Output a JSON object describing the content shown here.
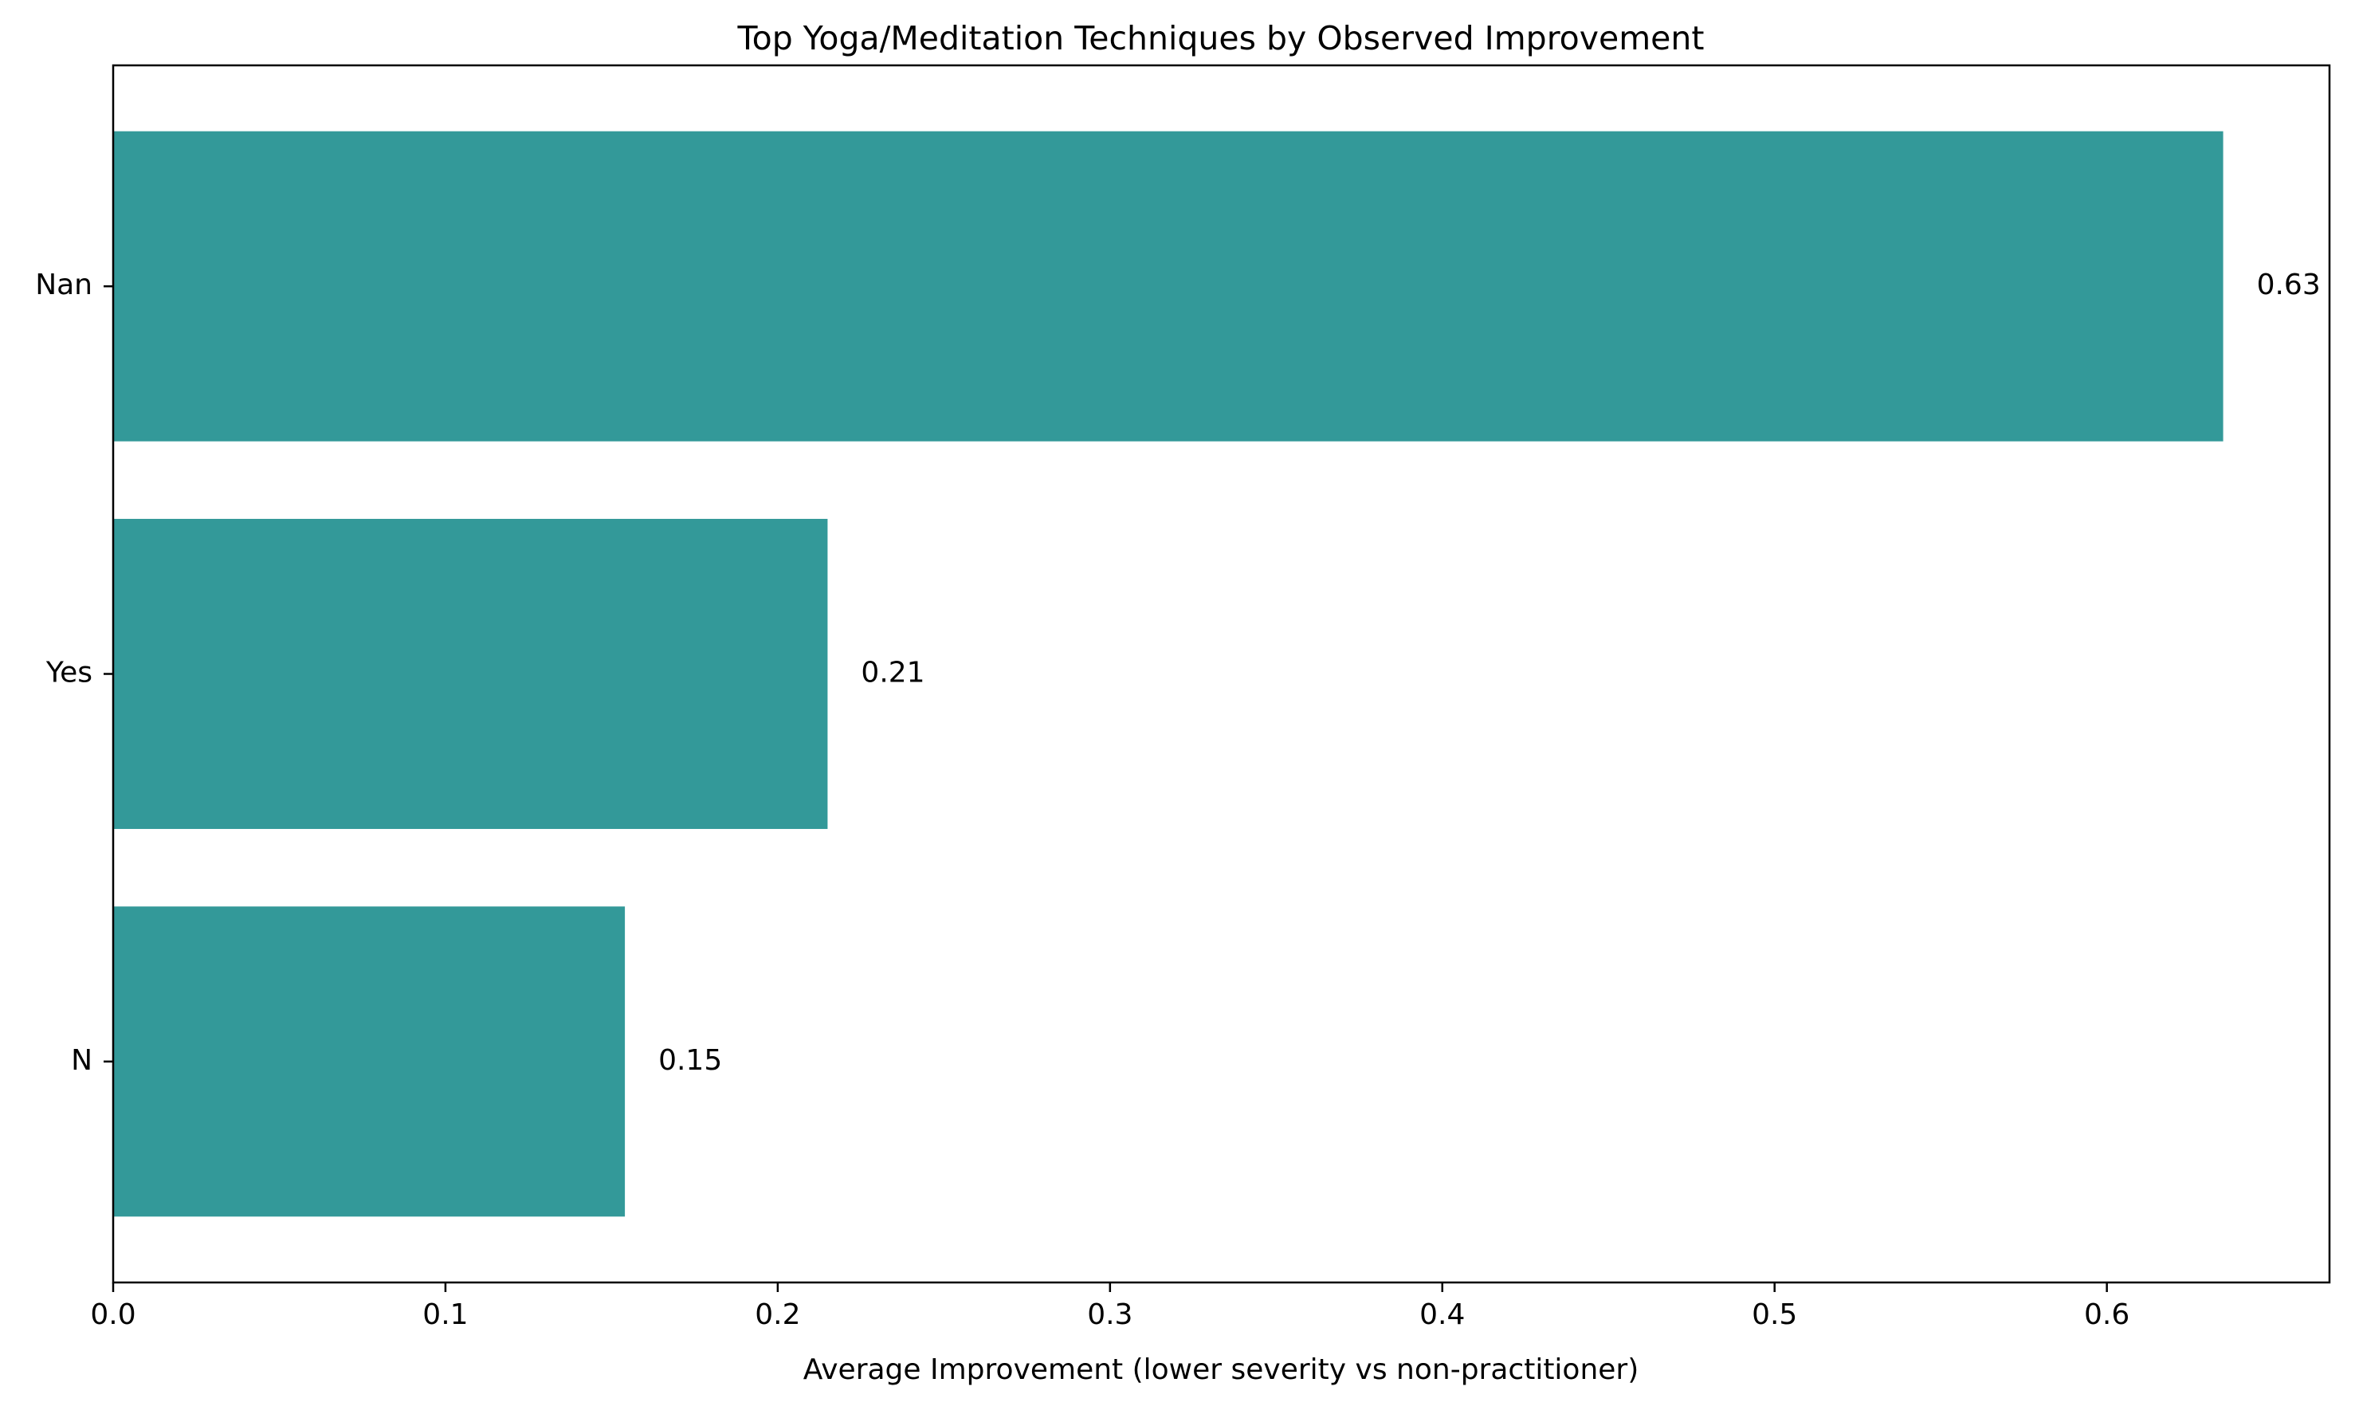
{
  "chart_data": {
    "type": "bar",
    "orientation": "horizontal",
    "title": "Top Yoga/Meditation Techniques by Observed Improvement",
    "xlabel": "Average Improvement (lower severity vs non-practitioner)",
    "ylabel": "",
    "categories": [
      "Nan",
      "Yes",
      "N"
    ],
    "values": [
      0.635,
      0.215,
      0.154
    ],
    "data_labels": [
      "0.63",
      "0.21",
      "0.15"
    ],
    "xlim": [
      0.0,
      0.667
    ],
    "xticks": [
      0.0,
      0.1,
      0.2,
      0.3,
      0.4,
      0.5,
      0.6
    ],
    "xtick_labels": [
      "0.0",
      "0.1",
      "0.2",
      "0.3",
      "0.4",
      "0.5",
      "0.6"
    ],
    "grid": false,
    "legend": "none",
    "colors": {
      "bar": "#339999",
      "axis": "#000000",
      "background": "#ffffff"
    }
  }
}
